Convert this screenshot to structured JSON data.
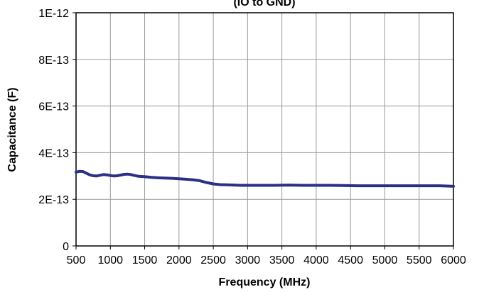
{
  "chart_data": {
    "type": "line",
    "title": "(IO to GND)",
    "xlabel": "Frequency (MHz)",
    "ylabel": "Capacitance (F)",
    "xlim": [
      500,
      6000
    ],
    "ylim": [
      0,
      1e-12
    ],
    "x_ticks": [
      500,
      1000,
      1500,
      2000,
      2500,
      3000,
      3500,
      4000,
      4500,
      5000,
      5500,
      6000
    ],
    "x_tick_labels": [
      "500",
      "1000",
      "1500",
      "2000",
      "2500",
      "3000",
      "3500",
      "4000",
      "4500",
      "5000",
      "5500",
      "6000"
    ],
    "y_ticks": [
      0,
      2e-13,
      4e-13,
      6e-13,
      8e-13,
      1e-12
    ],
    "y_tick_labels": [
      "0",
      "2E-13",
      "4E-13",
      "6E-13",
      "8E-13",
      "1E-12"
    ],
    "grid": true,
    "series": [
      {
        "color": "#2B2F86",
        "x": [
          500,
          550,
          600,
          650,
          700,
          750,
          800,
          850,
          900,
          950,
          1000,
          1050,
          1100,
          1150,
          1200,
          1250,
          1300,
          1350,
          1400,
          1450,
          1500,
          1600,
          1700,
          1800,
          1900,
          2000,
          2100,
          2200,
          2300,
          2400,
          2500,
          2600,
          2700,
          2800,
          2900,
          3000,
          3200,
          3400,
          3600,
          3800,
          4000,
          4200,
          4400,
          4600,
          4800,
          5000,
          5200,
          5400,
          5600,
          5800,
          6000
        ],
        "y": [
          3.16e-13,
          3.2e-13,
          3.19e-13,
          3.12e-13,
          3.05e-13,
          3.01e-13,
          3e-13,
          3.03e-13,
          3.06e-13,
          3.05e-13,
          3.02e-13,
          3e-13,
          3.01e-13,
          3.04e-13,
          3.07e-13,
          3.08e-13,
          3.06e-13,
          3.02e-13,
          2.99e-13,
          2.98e-13,
          2.97e-13,
          2.94e-13,
          2.92e-13,
          2.91e-13,
          2.9e-13,
          2.88e-13,
          2.86e-13,
          2.84e-13,
          2.8e-13,
          2.72e-13,
          2.66e-13,
          2.63e-13,
          2.62e-13,
          2.61e-13,
          2.6e-13,
          2.6e-13,
          2.6e-13,
          2.6e-13,
          2.61e-13,
          2.6e-13,
          2.6e-13,
          2.6e-13,
          2.59e-13,
          2.58e-13,
          2.58e-13,
          2.58e-13,
          2.58e-13,
          2.58e-13,
          2.58e-13,
          2.58e-13,
          2.56e-13
        ]
      }
    ]
  }
}
